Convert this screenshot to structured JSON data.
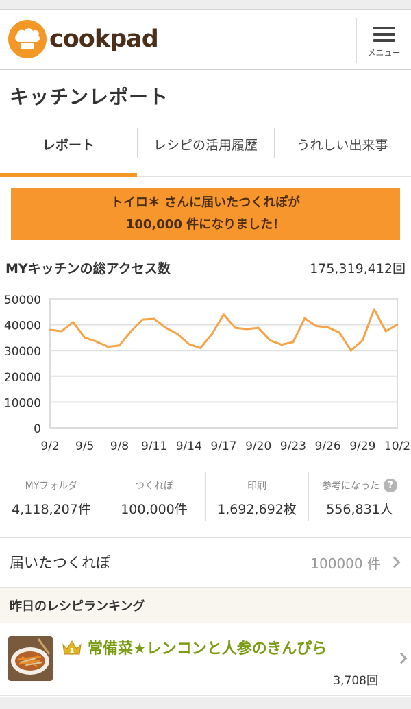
{
  "header": {
    "logo_text": "cookpad",
    "menu_label": "メニュー"
  },
  "page": {
    "title": "キッチンレポート"
  },
  "tabs": [
    {
      "label": "レポート",
      "active": true
    },
    {
      "label": "レシピの活用履歴",
      "active": false
    },
    {
      "label": "うれしい出来事",
      "active": false
    }
  ],
  "banner": {
    "line1": "トイロ＊ さんに届いたつくれぽが",
    "line2": "100,000 件になりました！"
  },
  "access": {
    "title": "MYキッチンの総アクセス数",
    "total": "175,319,412回"
  },
  "chart_data": {
    "type": "line",
    "x": [
      "9/2",
      "9/3",
      "9/4",
      "9/5",
      "9/6",
      "9/7",
      "9/8",
      "9/9",
      "9/10",
      "9/11",
      "9/12",
      "9/13",
      "9/14",
      "9/15",
      "9/16",
      "9/17",
      "9/18",
      "9/19",
      "9/20",
      "9/21",
      "9/22",
      "9/23",
      "9/24",
      "9/25",
      "9/26",
      "9/27",
      "9/28",
      "9/29",
      "9/30",
      "10/1",
      "10/2"
    ],
    "values": [
      38000,
      37500,
      41000,
      35000,
      33500,
      31500,
      32000,
      37500,
      42000,
      42300,
      38800,
      36500,
      32500,
      31000,
      36500,
      44000,
      38800,
      38300,
      38800,
      34000,
      32300,
      33300,
      42500,
      39500,
      39000,
      37000,
      30000,
      34000,
      46000,
      37500,
      40000
    ],
    "tick_labels": [
      "9/2",
      "9/5",
      "9/8",
      "9/11",
      "9/14",
      "9/17",
      "9/20",
      "9/23",
      "9/26",
      "9/29",
      "10/2"
    ],
    "y_ticks": [
      "0",
      "10000",
      "20000",
      "30000",
      "40000",
      "50000"
    ],
    "ylim": [
      0,
      50000
    ],
    "grid": true,
    "line_color": "#f5a44a"
  },
  "stats": [
    {
      "label": "MYフォルダ",
      "value": "4,118,207件"
    },
    {
      "label": "つくれぽ",
      "value": "100,000件"
    },
    {
      "label": "印刷",
      "value": "1,692,692枚"
    },
    {
      "label": "参考になった",
      "value": "556,831人",
      "help_icon": "question-icon"
    }
  ],
  "tsukurepo": {
    "label": "届いたつくれぽ",
    "count": "100000 件"
  },
  "ranking": {
    "heading": "昨日のレシピランキング",
    "items": [
      {
        "rank": "1",
        "title": "常備菜★レンコンと人参のきんぴら",
        "count": "3,708回"
      }
    ]
  },
  "colors": {
    "accent": "#f39726",
    "banner": "#f7962d",
    "recipe_title": "#7a9c13"
  }
}
